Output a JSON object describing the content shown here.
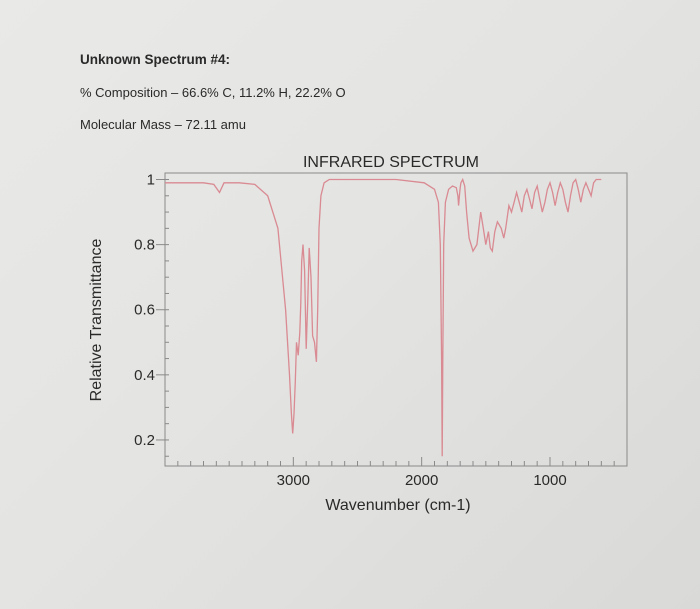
{
  "header": {
    "title": "Unknown Spectrum #4:",
    "composition": "% Composition – 66.6% C, 11.2% H, 22.2% O",
    "molecular_mass": "Molecular Mass – 72.11 amu"
  },
  "chart_data": {
    "type": "line",
    "title": "INFRARED SPECTRUM",
    "xlabel": "Wavenumber (cm-1)",
    "ylabel": "Relative Transmittance",
    "x_reversed": true,
    "xlim": [
      4000,
      400
    ],
    "ylim": [
      0.12,
      1.02
    ],
    "x_ticks": [
      3000,
      2000,
      1000
    ],
    "x_tick_labels": [
      "3000",
      "2000",
      "1000"
    ],
    "y_ticks": [
      1,
      0.8,
      0.6,
      0.4,
      0.2
    ],
    "y_tick_labels": [
      "1",
      "0.8",
      "0.6",
      "0.4",
      "0.2"
    ],
    "grid": false,
    "line_color": "#d98a92",
    "series": [
      {
        "x": [
          4000,
          3700,
          3620,
          3575,
          3540,
          3500,
          3420,
          3300,
          3200,
          3120,
          3060,
          3030,
          3015,
          3005,
          2995,
          2985,
          2975,
          2962,
          2950,
          2942,
          2935,
          2925,
          2912,
          2900,
          2888,
          2876,
          2862,
          2850,
          2835,
          2820,
          2810,
          2800,
          2785,
          2760,
          2720,
          2600,
          2400,
          2200,
          1980,
          1900,
          1870,
          1855,
          1845,
          1840,
          1835,
          1828,
          1815,
          1790,
          1760,
          1730,
          1718,
          1712,
          1706,
          1700,
          1694,
          1680,
          1665,
          1650,
          1630,
          1600,
          1570,
          1540,
          1520,
          1500,
          1480,
          1465,
          1450,
          1430,
          1410,
          1380,
          1360,
          1345,
          1320,
          1300,
          1280,
          1260,
          1240,
          1220,
          1200,
          1180,
          1160,
          1140,
          1120,
          1100,
          1080,
          1060,
          1040,
          1020,
          1000,
          980,
          960,
          940,
          920,
          900,
          880,
          860,
          840,
          820,
          800,
          780,
          760,
          740,
          720,
          700,
          680,
          660,
          640,
          620,
          600
        ],
        "y": [
          0.99,
          0.99,
          0.985,
          0.96,
          0.99,
          0.99,
          0.99,
          0.985,
          0.95,
          0.85,
          0.6,
          0.4,
          0.28,
          0.22,
          0.28,
          0.38,
          0.5,
          0.46,
          0.53,
          0.62,
          0.75,
          0.8,
          0.72,
          0.48,
          0.62,
          0.79,
          0.7,
          0.52,
          0.5,
          0.44,
          0.6,
          0.85,
          0.95,
          0.99,
          1.0,
          1.0,
          1.0,
          1.0,
          0.99,
          0.97,
          0.93,
          0.8,
          0.45,
          0.15,
          0.45,
          0.8,
          0.93,
          0.97,
          0.98,
          0.975,
          0.95,
          0.92,
          0.95,
          0.975,
          0.99,
          1.0,
          0.98,
          0.9,
          0.82,
          0.78,
          0.8,
          0.9,
          0.85,
          0.8,
          0.84,
          0.79,
          0.78,
          0.84,
          0.87,
          0.85,
          0.82,
          0.85,
          0.92,
          0.9,
          0.93,
          0.96,
          0.93,
          0.9,
          0.95,
          0.97,
          0.94,
          0.91,
          0.96,
          0.98,
          0.94,
          0.9,
          0.93,
          0.97,
          0.99,
          0.96,
          0.92,
          0.96,
          0.99,
          0.97,
          0.93,
          0.9,
          0.95,
          0.99,
          1.0,
          0.97,
          0.93,
          0.97,
          0.99,
          0.97,
          0.95,
          0.99,
          1.0,
          1.0,
          1.0
        ]
      }
    ]
  }
}
